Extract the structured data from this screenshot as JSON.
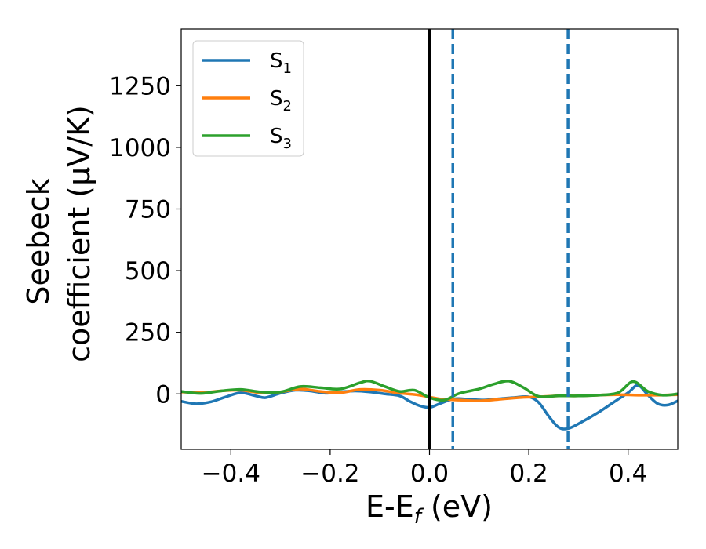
{
  "chart_data": {
    "type": "line",
    "xlabel_main": "E-E",
    "xlabel_sub": "f",
    "xlabel_unit": " (eV)",
    "ylabel_line1": "Seebeck",
    "ylabel_line2": "coefficient  (μV/K)",
    "xlim": [
      -0.5,
      0.5
    ],
    "ylim": [
      -225,
      1480
    ],
    "xticks": [
      -0.4,
      -0.2,
      0.0,
      0.2,
      0.4
    ],
    "xtick_labels": [
      "−0.4",
      "−0.2",
      "0.0",
      "0.2",
      "0.4"
    ],
    "yticks": [
      0,
      250,
      500,
      750,
      1000,
      1250
    ],
    "ytick_labels": [
      "0",
      "250",
      "500",
      "750",
      "1000",
      "1250"
    ],
    "grid": false,
    "legend_position": "top-left",
    "vlines": [
      {
        "x": 0.0,
        "style": "solid",
        "color": "#000000"
      },
      {
        "x": 0.047,
        "style": "dashed",
        "color": "#1f77b4"
      },
      {
        "x": 0.279,
        "style": "dashed",
        "color": "#1f77b4"
      }
    ],
    "series": [
      {
        "name": "S",
        "sub": "1",
        "color": "#1f77b4",
        "x": [
          -0.5,
          -0.47,
          -0.44,
          -0.41,
          -0.38,
          -0.35,
          -0.33,
          -0.3,
          -0.27,
          -0.24,
          -0.21,
          -0.18,
          -0.15,
          -0.12,
          -0.09,
          -0.06,
          -0.04,
          -0.02,
          0.0,
          0.02,
          0.05,
          0.08,
          0.11,
          0.14,
          0.17,
          0.2,
          0.22,
          0.24,
          0.26,
          0.28,
          0.31,
          0.34,
          0.37,
          0.4,
          0.42,
          0.44,
          0.46,
          0.48,
          0.5
        ],
        "y": [
          -30,
          -40,
          -32,
          -12,
          5,
          -8,
          -15,
          3,
          15,
          12,
          3,
          8,
          12,
          8,
          0,
          -8,
          -30,
          -48,
          -55,
          -40,
          -20,
          -22,
          -25,
          -20,
          -15,
          -12,
          -35,
          -90,
          -135,
          -140,
          -110,
          -75,
          -35,
          5,
          35,
          -5,
          -40,
          -45,
          -28
        ]
      },
      {
        "name": "S",
        "sub": "2",
        "color": "#ff7f0e",
        "x": [
          -0.5,
          -0.46,
          -0.42,
          -0.38,
          -0.34,
          -0.3,
          -0.26,
          -0.22,
          -0.18,
          -0.14,
          -0.1,
          -0.06,
          -0.02,
          0.02,
          0.06,
          0.1,
          0.14,
          0.18,
          0.22,
          0.26,
          0.3,
          0.34,
          0.38,
          0.42,
          0.46,
          0.5
        ],
        "y": [
          8,
          5,
          12,
          15,
          5,
          8,
          20,
          10,
          5,
          18,
          15,
          3,
          -5,
          -20,
          -25,
          -28,
          -22,
          -15,
          -12,
          -8,
          -8,
          -5,
          -3,
          -5,
          -5,
          -3
        ]
      },
      {
        "name": "S",
        "sub": "3",
        "color": "#2ca02c",
        "x": [
          -0.5,
          -0.46,
          -0.42,
          -0.38,
          -0.34,
          -0.3,
          -0.26,
          -0.22,
          -0.18,
          -0.14,
          -0.12,
          -0.09,
          -0.06,
          -0.03,
          0.0,
          0.03,
          0.06,
          0.1,
          0.13,
          0.16,
          0.19,
          0.22,
          0.26,
          0.3,
          0.34,
          0.38,
          0.41,
          0.44,
          0.47,
          0.5
        ],
        "y": [
          10,
          2,
          12,
          18,
          8,
          8,
          30,
          25,
          20,
          45,
          52,
          30,
          10,
          15,
          -15,
          -25,
          2,
          20,
          40,
          52,
          25,
          -10,
          -8,
          -8,
          -5,
          5,
          50,
          10,
          -5,
          0
        ]
      }
    ]
  }
}
